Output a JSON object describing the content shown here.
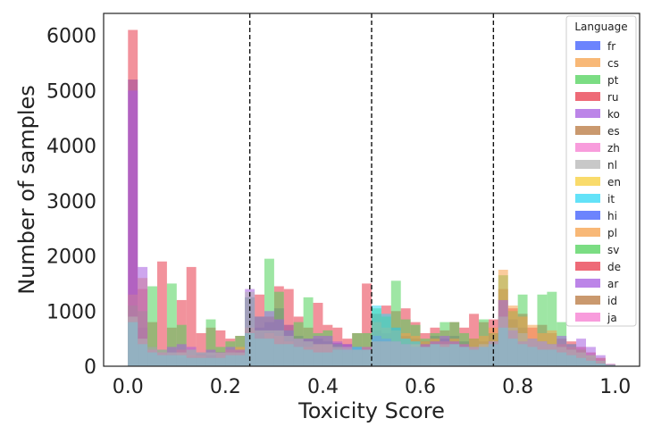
{
  "chart_data": {
    "type": "bar",
    "xlabel": "Toxicity Score",
    "ylabel": "Number of samples",
    "xlim": [
      -0.05,
      1.05
    ],
    "ylim": [
      0,
      6400
    ],
    "xticks": [
      "0.0",
      "0.2",
      "0.4",
      "0.6",
      "0.8",
      "1.0"
    ],
    "yticks": [
      "0",
      "1000",
      "2000",
      "3000",
      "4000",
      "5000",
      "6000"
    ],
    "grid": false,
    "vlines": [
      0.25,
      0.5,
      0.75
    ],
    "legend": {
      "title": "Language",
      "placement": "top-right",
      "entries": [
        {
          "label": "fr",
          "color": "#3b5bfc"
        },
        {
          "label": "cs",
          "color": "#f5a04a"
        },
        {
          "label": "pt",
          "color": "#4fd15a"
        },
        {
          "label": "ru",
          "color": "#e8384a"
        },
        {
          "label": "ko",
          "color": "#a55ce0"
        },
        {
          "label": "es",
          "color": "#b8773d"
        },
        {
          "label": "zh",
          "color": "#f57bd0"
        },
        {
          "label": "nl",
          "color": "#b5b5b5"
        },
        {
          "label": "en",
          "color": "#f7cf3a"
        },
        {
          "label": "it",
          "color": "#2fd8f5"
        },
        {
          "label": "hi",
          "color": "#3b5bfc"
        },
        {
          "label": "pl",
          "color": "#f5a04a"
        },
        {
          "label": "sv",
          "color": "#4fd15a"
        },
        {
          "label": "de",
          "color": "#e8384a"
        },
        {
          "label": "ar",
          "color": "#a55ce0"
        },
        {
          "label": "id",
          "color": "#b8773d"
        },
        {
          "label": "ja",
          "color": "#f57bd0"
        }
      ]
    },
    "bin_width": 0.02,
    "bin_starts": [
      0.0,
      0.02,
      0.04,
      0.06,
      0.08,
      0.1,
      0.12,
      0.14,
      0.16,
      0.18,
      0.2,
      0.22,
      0.24,
      0.26,
      0.28,
      0.3,
      0.32,
      0.34,
      0.36,
      0.38,
      0.4,
      0.42,
      0.44,
      0.46,
      0.48,
      0.5,
      0.52,
      0.54,
      0.56,
      0.58,
      0.6,
      0.62,
      0.64,
      0.66,
      0.68,
      0.7,
      0.72,
      0.74,
      0.76,
      0.78,
      0.8,
      0.82,
      0.84,
      0.86,
      0.88,
      0.9,
      0.92,
      0.94,
      0.96,
      0.98
    ],
    "series": [
      {
        "color": "#3b5bfc",
        "values": [
          5200,
          700,
          350,
          300,
          200,
          150,
          180,
          220,
          200,
          260,
          250,
          270,
          1250,
          700,
          800,
          1050,
          750,
          550,
          500,
          500,
          450,
          420,
          400,
          350,
          300,
          650,
          600,
          700,
          550,
          500,
          450,
          550,
          500,
          550,
          450,
          500,
          450,
          600,
          900,
          850,
          700,
          500,
          450,
          400,
          350,
          300,
          250,
          150,
          100,
          30
        ]
      },
      {
        "color": "#e8384a",
        "values": [
          6100,
          1400,
          800,
          1900,
          700,
          1200,
          1800,
          600,
          700,
          650,
          500,
          550,
          650,
          1300,
          900,
          1450,
          1400,
          900,
          700,
          1150,
          750,
          700,
          500,
          600,
          1500,
          950,
          1100,
          1000,
          1050,
          800,
          600,
          700,
          650,
          800,
          700,
          950,
          800,
          850,
          1400,
          1050,
          950,
          700,
          750,
          600,
          500,
          450,
          350,
          250,
          150,
          40
        ]
      },
      {
        "color": "#4fd15a",
        "values": [
          1100,
          1000,
          1450,
          300,
          1500,
          750,
          300,
          250,
          850,
          350,
          450,
          550,
          1250,
          900,
          1950,
          1350,
          650,
          800,
          1250,
          600,
          650,
          400,
          250,
          600,
          600,
          1050,
          900,
          1550,
          850,
          750,
          500,
          600,
          800,
          800,
          600,
          500,
          850,
          600,
          1650,
          1000,
          1300,
          500,
          1300,
          1350,
          800,
          400,
          300,
          200,
          100,
          30
        ]
      },
      {
        "color": "#f5a04a",
        "values": [
          1300,
          1600,
          300,
          250,
          200,
          300,
          200,
          200,
          150,
          250,
          300,
          350,
          700,
          500,
          600,
          550,
          450,
          350,
          350,
          400,
          400,
          300,
          300,
          300,
          350,
          800,
          700,
          650,
          600,
          550,
          450,
          500,
          450,
          500,
          400,
          500,
          550,
          700,
          1750,
          1100,
          900,
          750,
          600,
          650,
          400,
          350,
          300,
          200,
          150,
          30
        ]
      },
      {
        "color": "#a55ce0",
        "values": [
          5000,
          1800,
          300,
          250,
          350,
          400,
          350,
          250,
          300,
          250,
          350,
          300,
          1400,
          900,
          1000,
          850,
          650,
          500,
          500,
          550,
          550,
          450,
          400,
          350,
          350,
          550,
          500,
          450,
          400,
          350,
          400,
          450,
          550,
          450,
          400,
          350,
          350,
          450,
          1200,
          650,
          450,
          500,
          450,
          400,
          550,
          400,
          500,
          350,
          200,
          40
        ]
      },
      {
        "color": "#2fd8f5",
        "values": [
          800,
          400,
          250,
          200,
          200,
          200,
          150,
          150,
          150,
          150,
          200,
          200,
          600,
          500,
          500,
          400,
          400,
          350,
          300,
          250,
          250,
          300,
          300,
          350,
          300,
          1100,
          950,
          700,
          500,
          450,
          350,
          400,
          350,
          400,
          350,
          300,
          350,
          400,
          700,
          500,
          400,
          350,
          300,
          300,
          250,
          200,
          150,
          100,
          50,
          20
        ]
      },
      {
        "color": "#b5b5b5",
        "values": [
          900,
          500,
          350,
          300,
          250,
          250,
          300,
          250,
          250,
          250,
          250,
          250,
          1350,
          650,
          650,
          650,
          550,
          500,
          450,
          400,
          400,
          350,
          350,
          300,
          300,
          450,
          450,
          450,
          400,
          400,
          350,
          400,
          400,
          400,
          350,
          350,
          400,
          450,
          900,
          700,
          600,
          500,
          450,
          400,
          350,
          300,
          250,
          200,
          100,
          30
        ]
      }
    ],
    "bins_approx_note": ""
  }
}
